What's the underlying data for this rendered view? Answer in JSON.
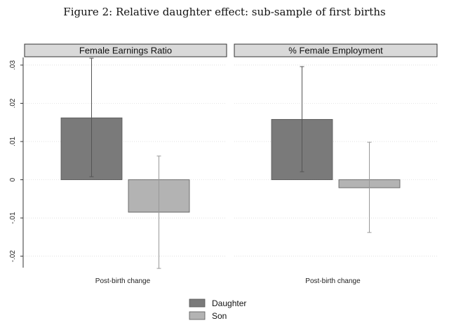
{
  "figure": {
    "caption": "Figure 2: Relative daughter effect: sub-sample of first births"
  },
  "chart_data": {
    "type": "bar",
    "ylim": [
      -0.023,
      0.032
    ],
    "yticks": [
      0.03,
      0.02,
      0.01,
      0,
      -0.01,
      -0.02
    ],
    "ytick_labels": [
      ".03",
      ".02",
      ".01",
      "0",
      "-.01",
      "-.02"
    ],
    "grid": true,
    "legend_position": "bottom",
    "series": [
      {
        "name": "Daughter",
        "color": "#7a7a7a"
      },
      {
        "name": "Son",
        "color": "#b3b3b3"
      }
    ],
    "panels": [
      {
        "title": "Female Earnings Ratio",
        "category": "Post-birth change",
        "bars": [
          {
            "series": "Daughter",
            "value": 0.0162,
            "ci": [
              0.0008,
              0.0318
            ]
          },
          {
            "series": "Son",
            "value": -0.0085,
            "ci": [
              -0.0232,
              0.0062
            ]
          }
        ]
      },
      {
        "title": "% Female Employment",
        "category": "Post-birth change",
        "bars": [
          {
            "series": "Daughter",
            "value": 0.0158,
            "ci": [
              0.0021,
              0.0296
            ]
          },
          {
            "series": "Son",
            "value": -0.0021,
            "ci": [
              -0.0138,
              0.0098
            ]
          }
        ]
      }
    ]
  }
}
